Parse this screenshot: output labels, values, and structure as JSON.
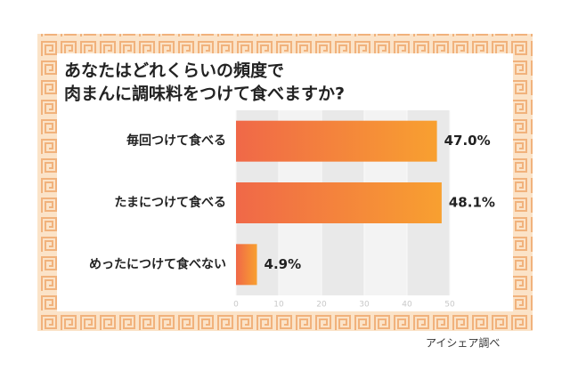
{
  "chart_data": {
    "type": "hbar",
    "title": [
      "あなたはどれくらいの頻度で",
      "肉まんに調味料をつけて食べますか?"
    ],
    "categories": [
      "毎回つけて食べる",
      "たまにつけて食べる",
      "めったにつけて食べない"
    ],
    "values": [
      47.0,
      48.1,
      4.9
    ],
    "value_labels": [
      "47.0%",
      "48.1%",
      "4.9%"
    ],
    "xlim": [
      0,
      50
    ],
    "xticks": [
      0,
      10,
      20,
      30,
      40,
      50
    ],
    "colors": [
      "#f06848",
      "#f8a030"
    ],
    "source": "アイシェア調べ"
  }
}
